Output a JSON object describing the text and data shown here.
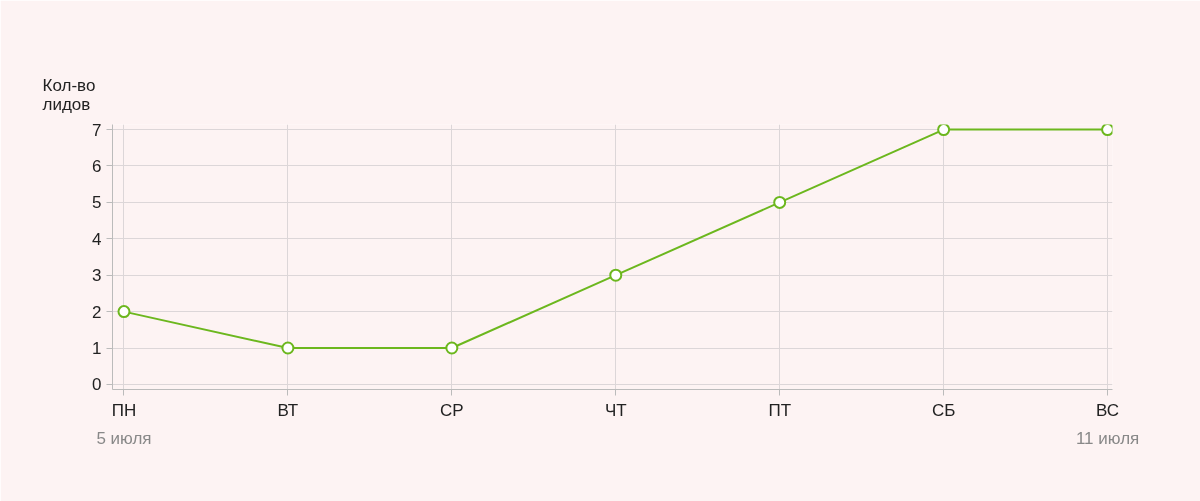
{
  "chart_data": {
    "type": "line",
    "ylabel": "Кол-во\nлидов",
    "categories": [
      "ПН",
      "ВТ",
      "СР",
      "ЧТ",
      "ПТ",
      "СБ",
      "ВС"
    ],
    "series": [
      {
        "color": "#6cb71e",
        "values": [
          2,
          1,
          1,
          3,
          5,
          7,
          7
        ]
      }
    ],
    "ylim": [
      0,
      7
    ],
    "yticks": [
      0,
      1,
      2,
      3,
      4,
      5,
      6,
      7
    ],
    "grid": true,
    "marker": "circle",
    "line_style": "solid",
    "annotations": [
      "5 июля",
      "11 июля"
    ]
  }
}
